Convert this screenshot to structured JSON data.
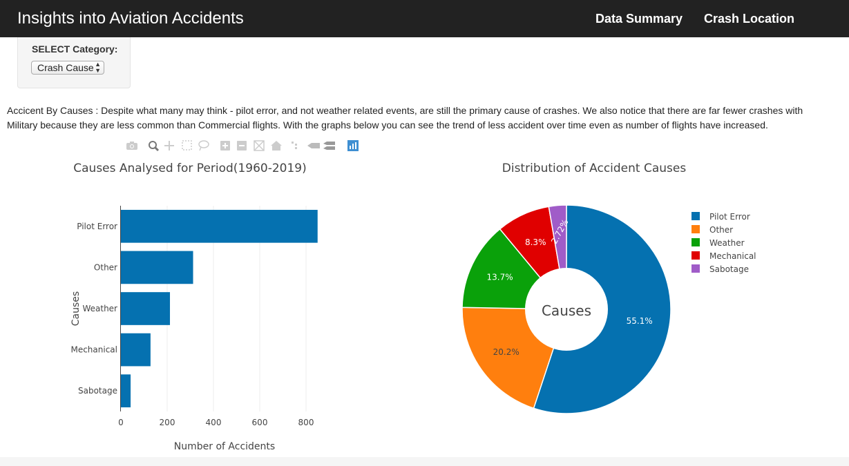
{
  "navbar": {
    "brand": "Insights into Aviation Accidents",
    "links": [
      "Data Summary",
      "Crash Location"
    ]
  },
  "selector": {
    "label": "SELECT Category:",
    "value": "Crash Cause"
  },
  "description": "Accicent By Causes : Despite what many may think - pilot error, and not weather related events, are still the primary cause of crashes. We also notice that there are far fewer crashes with Military because they are less common than Commercial flights. With the graphs below you can see the trend of less accident over time even as number of flights have increased.",
  "modebar": {
    "icons": [
      "camera-icon",
      "zoom-icon",
      "pan-icon",
      "box-select-icon",
      "lasso-select-icon",
      "zoom-in-icon",
      "zoom-out-icon",
      "autoscale-icon",
      "reset-axes-icon",
      "toggle-spike-lines-icon",
      "show-closest-icon",
      "compare-data-icon",
      "plotly-logo-icon"
    ]
  },
  "colors": {
    "navbar": "#222222",
    "pilot_error": "#1f77b4",
    "bar": "#0571b0",
    "other": "#ff7f0e",
    "weather": "#2ca02c",
    "mechanical": "#d62728",
    "sabotage": "#9467bd"
  },
  "chart_data": [
    {
      "type": "bar",
      "orientation": "horizontal",
      "title": "Causes Analysed for Period(1960-2019)",
      "xlabel": "Number of Accidents",
      "ylabel": "Causes",
      "categories": [
        "Pilot Error",
        "Other",
        "Weather",
        "Mechanical",
        "Sabotage"
      ],
      "values": [
        850,
        312,
        212,
        128,
        42
      ],
      "xlim": [
        0,
        880
      ],
      "xticks": [
        0,
        200,
        400,
        600,
        800
      ],
      "grid": true
    },
    {
      "type": "pie",
      "hole": true,
      "title": "Distribution of Accident Causes",
      "center_label": "Causes",
      "labels": [
        "Pilot Error",
        "Other",
        "Weather",
        "Mechanical",
        "Sabotage"
      ],
      "values": [
        55.1,
        20.2,
        13.7,
        8.3,
        2.72
      ],
      "text_labels": [
        "55.1%",
        "20.2%",
        "13.7%",
        "8.3%",
        "2.72%"
      ],
      "colors": [
        "#0571b0",
        "#ff7f0e",
        "#0aa10a",
        "#e00000",
        "#a05cc8"
      ],
      "legend": "right"
    }
  ]
}
